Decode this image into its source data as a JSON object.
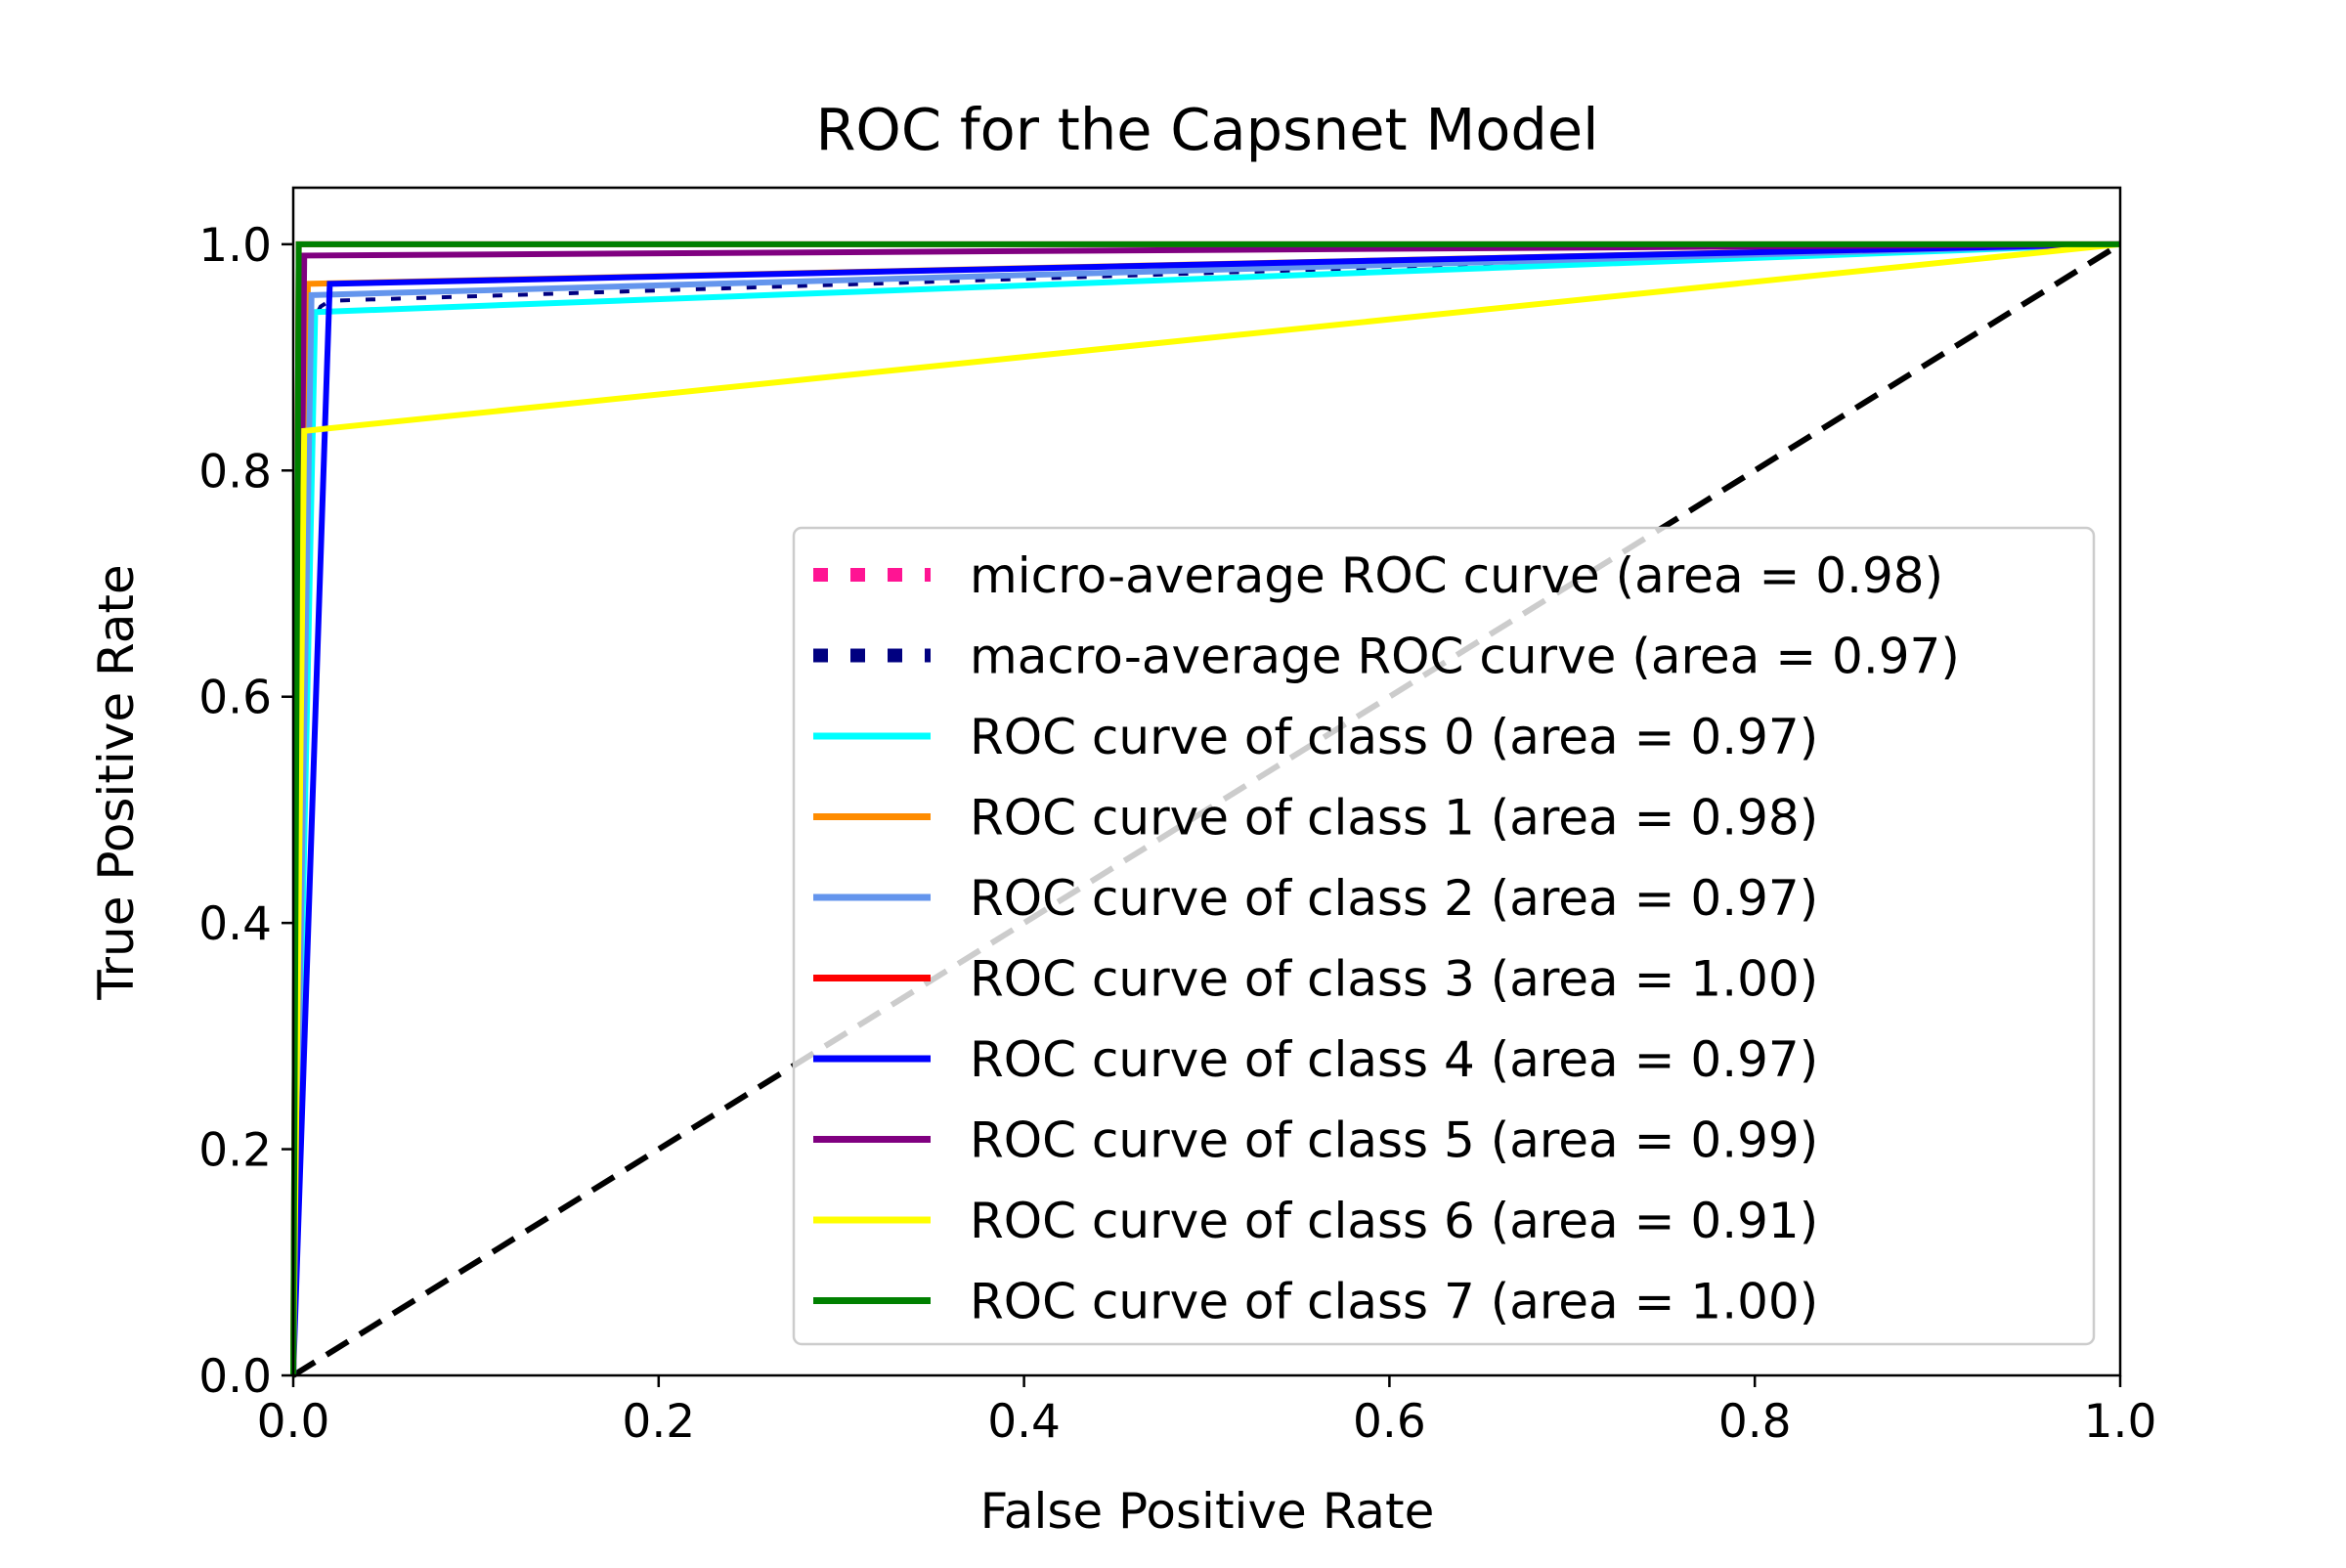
{
  "chart_data": {
    "type": "line",
    "title": "ROC for the Capsnet Model",
    "xlabel": "False Positive Rate",
    "ylabel": "True Positive Rate",
    "xlim": [
      0.0,
      1.0
    ],
    "ylim": [
      0.0,
      1.05
    ],
    "x_ticks": [
      "0.0",
      "0.2",
      "0.4",
      "0.6",
      "0.8",
      "1.0"
    ],
    "y_ticks": [
      "0.0",
      "0.2",
      "0.4",
      "0.6",
      "0.8",
      "1.0"
    ],
    "grid": false,
    "legend_position": "lower-right",
    "series": [
      {
        "name": "micro-average ROC curve (area = 0.98)",
        "color": "#ff1493",
        "style": "dotted",
        "x": [
          0.0,
          0.003,
          1.0
        ],
        "y": [
          0.0,
          0.965,
          1.0
        ]
      },
      {
        "name": "macro-average ROC curve (area = 0.97)",
        "color": "#000080",
        "style": "dotted",
        "x": [
          0.0,
          0.002,
          0.005,
          0.01,
          0.015,
          0.02,
          1.0
        ],
        "y": [
          0.0,
          0.25,
          0.85,
          0.93,
          0.945,
          0.95,
          1.0
        ]
      },
      {
        "name": "ROC curve of class 0 (area = 0.97)",
        "color": "#00ffff",
        "style": "solid",
        "x": [
          0.0,
          0.012,
          1.0
        ],
        "y": [
          0.0,
          0.94,
          1.0
        ]
      },
      {
        "name": "ROC curve of class 1 (area = 0.98)",
        "color": "#ff8c00",
        "style": "solid",
        "x": [
          0.0,
          0.008,
          1.0
        ],
        "y": [
          0.0,
          0.965,
          1.0
        ]
      },
      {
        "name": "ROC curve of class 2 (area = 0.97)",
        "color": "#6495ed",
        "style": "solid",
        "x": [
          0.0,
          0.01,
          1.0
        ],
        "y": [
          0.0,
          0.955,
          1.0
        ]
      },
      {
        "name": "ROC curve of class 3 (area = 1.00)",
        "color": "#ff0000",
        "style": "solid",
        "x": [
          0.0,
          0.003,
          1.0
        ],
        "y": [
          0.0,
          1.0,
          1.0
        ]
      },
      {
        "name": "ROC curve of class 4 (area = 0.97)",
        "color": "#0000ff",
        "style": "solid",
        "x": [
          0.0,
          0.02,
          1.0
        ],
        "y": [
          0.0,
          0.965,
          1.0
        ]
      },
      {
        "name": "ROC curve of class 5 (area = 0.99)",
        "color": "#800080",
        "style": "solid",
        "x": [
          0.0,
          0.006,
          1.0
        ],
        "y": [
          0.0,
          0.99,
          1.0
        ]
      },
      {
        "name": "ROC curve of class 6 (area = 0.91)",
        "color": "#ffff00",
        "style": "solid",
        "x": [
          0.0,
          0.006,
          1.0
        ],
        "y": [
          0.0,
          0.835,
          1.0
        ]
      },
      {
        "name": "ROC curve of class 7 (area = 1.00)",
        "color": "#008000",
        "style": "solid",
        "x": [
          0.0,
          0.003,
          1.0
        ],
        "y": [
          0.0,
          1.0,
          1.0
        ]
      }
    ],
    "reference_lines": [
      {
        "x": [
          0.0,
          1.0
        ],
        "y": [
          0.0,
          1.0
        ],
        "color": "#000000",
        "style": "dashed"
      }
    ]
  }
}
